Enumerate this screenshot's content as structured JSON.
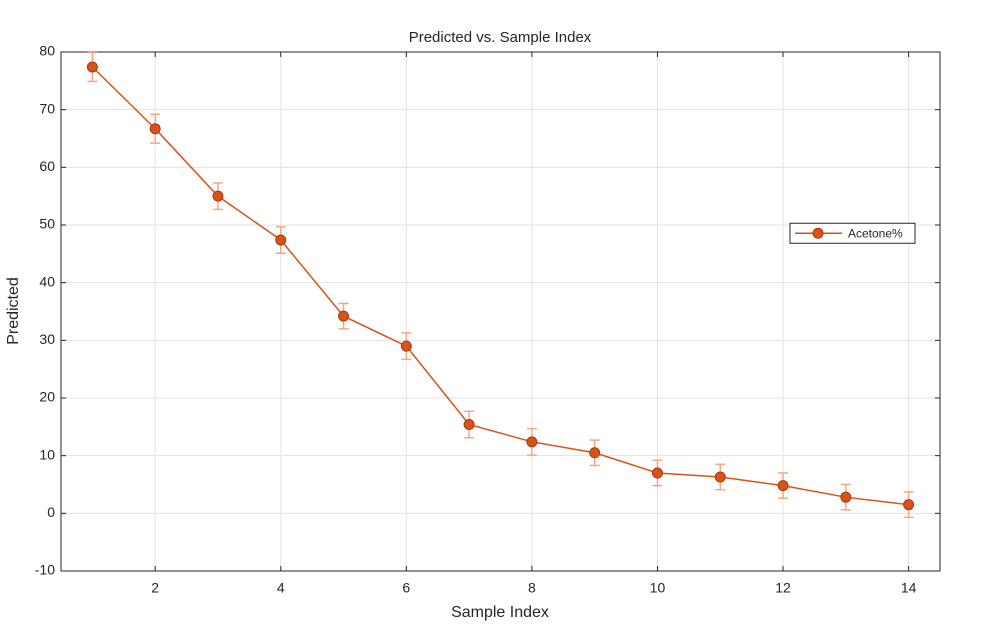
{
  "chart_data": {
    "type": "line",
    "title": "Predicted vs. Sample Index",
    "xlabel": "Sample Index",
    "ylabel": "Predicted",
    "x": [
      1,
      2,
      3,
      4,
      5,
      6,
      7,
      8,
      9,
      10,
      11,
      12,
      13,
      14
    ],
    "series": [
      {
        "name": "Acetone%",
        "color": "#d95319",
        "error_color": "#f0a888",
        "values": [
          77.4,
          66.7,
          55.0,
          47.4,
          34.2,
          29.0,
          15.4,
          12.4,
          10.5,
          7.0,
          6.3,
          4.8,
          2.8,
          1.5
        ],
        "errors": [
          2.5,
          2.5,
          2.3,
          2.3,
          2.2,
          2.3,
          2.3,
          2.3,
          2.2,
          2.2,
          2.2,
          2.2,
          2.2,
          2.2
        ]
      }
    ],
    "xlim": [
      0.5,
      14.5
    ],
    "xticks": [
      2,
      4,
      6,
      8,
      10,
      12,
      14
    ],
    "ylim": [
      -10,
      80
    ],
    "yticks": [
      -10,
      0,
      10,
      20,
      30,
      40,
      50,
      60,
      70,
      80
    ],
    "grid": true,
    "legend": "east"
  }
}
